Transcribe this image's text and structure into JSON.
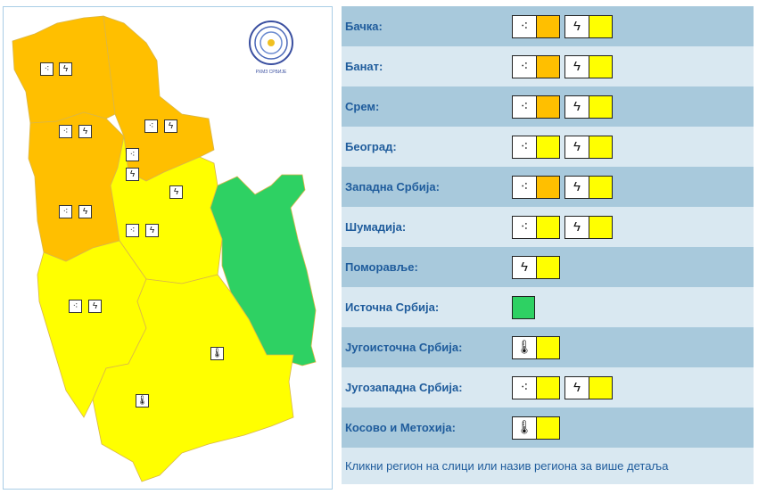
{
  "colors": {
    "orange": "#ffbf00",
    "yellow": "#ffff00",
    "green": "#2ed163"
  },
  "logo_text": "РХМЗ СРБИЈЕ",
  "regions": [
    {
      "label": "Бачка:",
      "warnings": [
        {
          "icon": "rain-icon",
          "glyph": "⁖",
          "level": "orange"
        },
        {
          "icon": "lightning-icon",
          "glyph": "ϟ",
          "level": "yellow"
        }
      ]
    },
    {
      "label": "Банат:",
      "warnings": [
        {
          "icon": "rain-icon",
          "glyph": "⁖",
          "level": "orange"
        },
        {
          "icon": "lightning-icon",
          "glyph": "ϟ",
          "level": "yellow"
        }
      ]
    },
    {
      "label": "Срем:",
      "warnings": [
        {
          "icon": "rain-icon",
          "glyph": "⁖",
          "level": "orange"
        },
        {
          "icon": "lightning-icon",
          "glyph": "ϟ",
          "level": "yellow"
        }
      ]
    },
    {
      "label": "Београд:",
      "warnings": [
        {
          "icon": "rain-icon",
          "glyph": "⁖",
          "level": "yellow"
        },
        {
          "icon": "lightning-icon",
          "glyph": "ϟ",
          "level": "yellow"
        }
      ]
    },
    {
      "label": "Западна Србија:",
      "warnings": [
        {
          "icon": "rain-icon",
          "glyph": "⁖",
          "level": "orange"
        },
        {
          "icon": "lightning-icon",
          "glyph": "ϟ",
          "level": "yellow"
        }
      ]
    },
    {
      "label": "Шумадија:",
      "warnings": [
        {
          "icon": "rain-icon",
          "glyph": "⁖",
          "level": "yellow"
        },
        {
          "icon": "lightning-icon",
          "glyph": "ϟ",
          "level": "yellow"
        }
      ]
    },
    {
      "label": "Поморавље:",
      "warnings": [
        {
          "icon": "lightning-icon",
          "glyph": "ϟ",
          "level": "yellow"
        }
      ]
    },
    {
      "label": "Источна Србија:",
      "warnings": [
        {
          "icon": "none",
          "glyph": "",
          "level": "green"
        }
      ]
    },
    {
      "label": "Југоисточна Србија:",
      "warnings": [
        {
          "icon": "thermometer-icon",
          "glyph": "🌡",
          "level": "yellow"
        }
      ]
    },
    {
      "label": "Југозападна Србија:",
      "warnings": [
        {
          "icon": "rain-icon",
          "glyph": "⁖",
          "level": "yellow"
        },
        {
          "icon": "lightning-icon",
          "glyph": "ϟ",
          "level": "yellow"
        }
      ]
    },
    {
      "label": "Косово и Метохија:",
      "warnings": [
        {
          "icon": "thermometer-icon",
          "glyph": "🌡",
          "level": "yellow"
        }
      ]
    }
  ],
  "footer": "Кликни регион на слици или назив региона за више детаља"
}
